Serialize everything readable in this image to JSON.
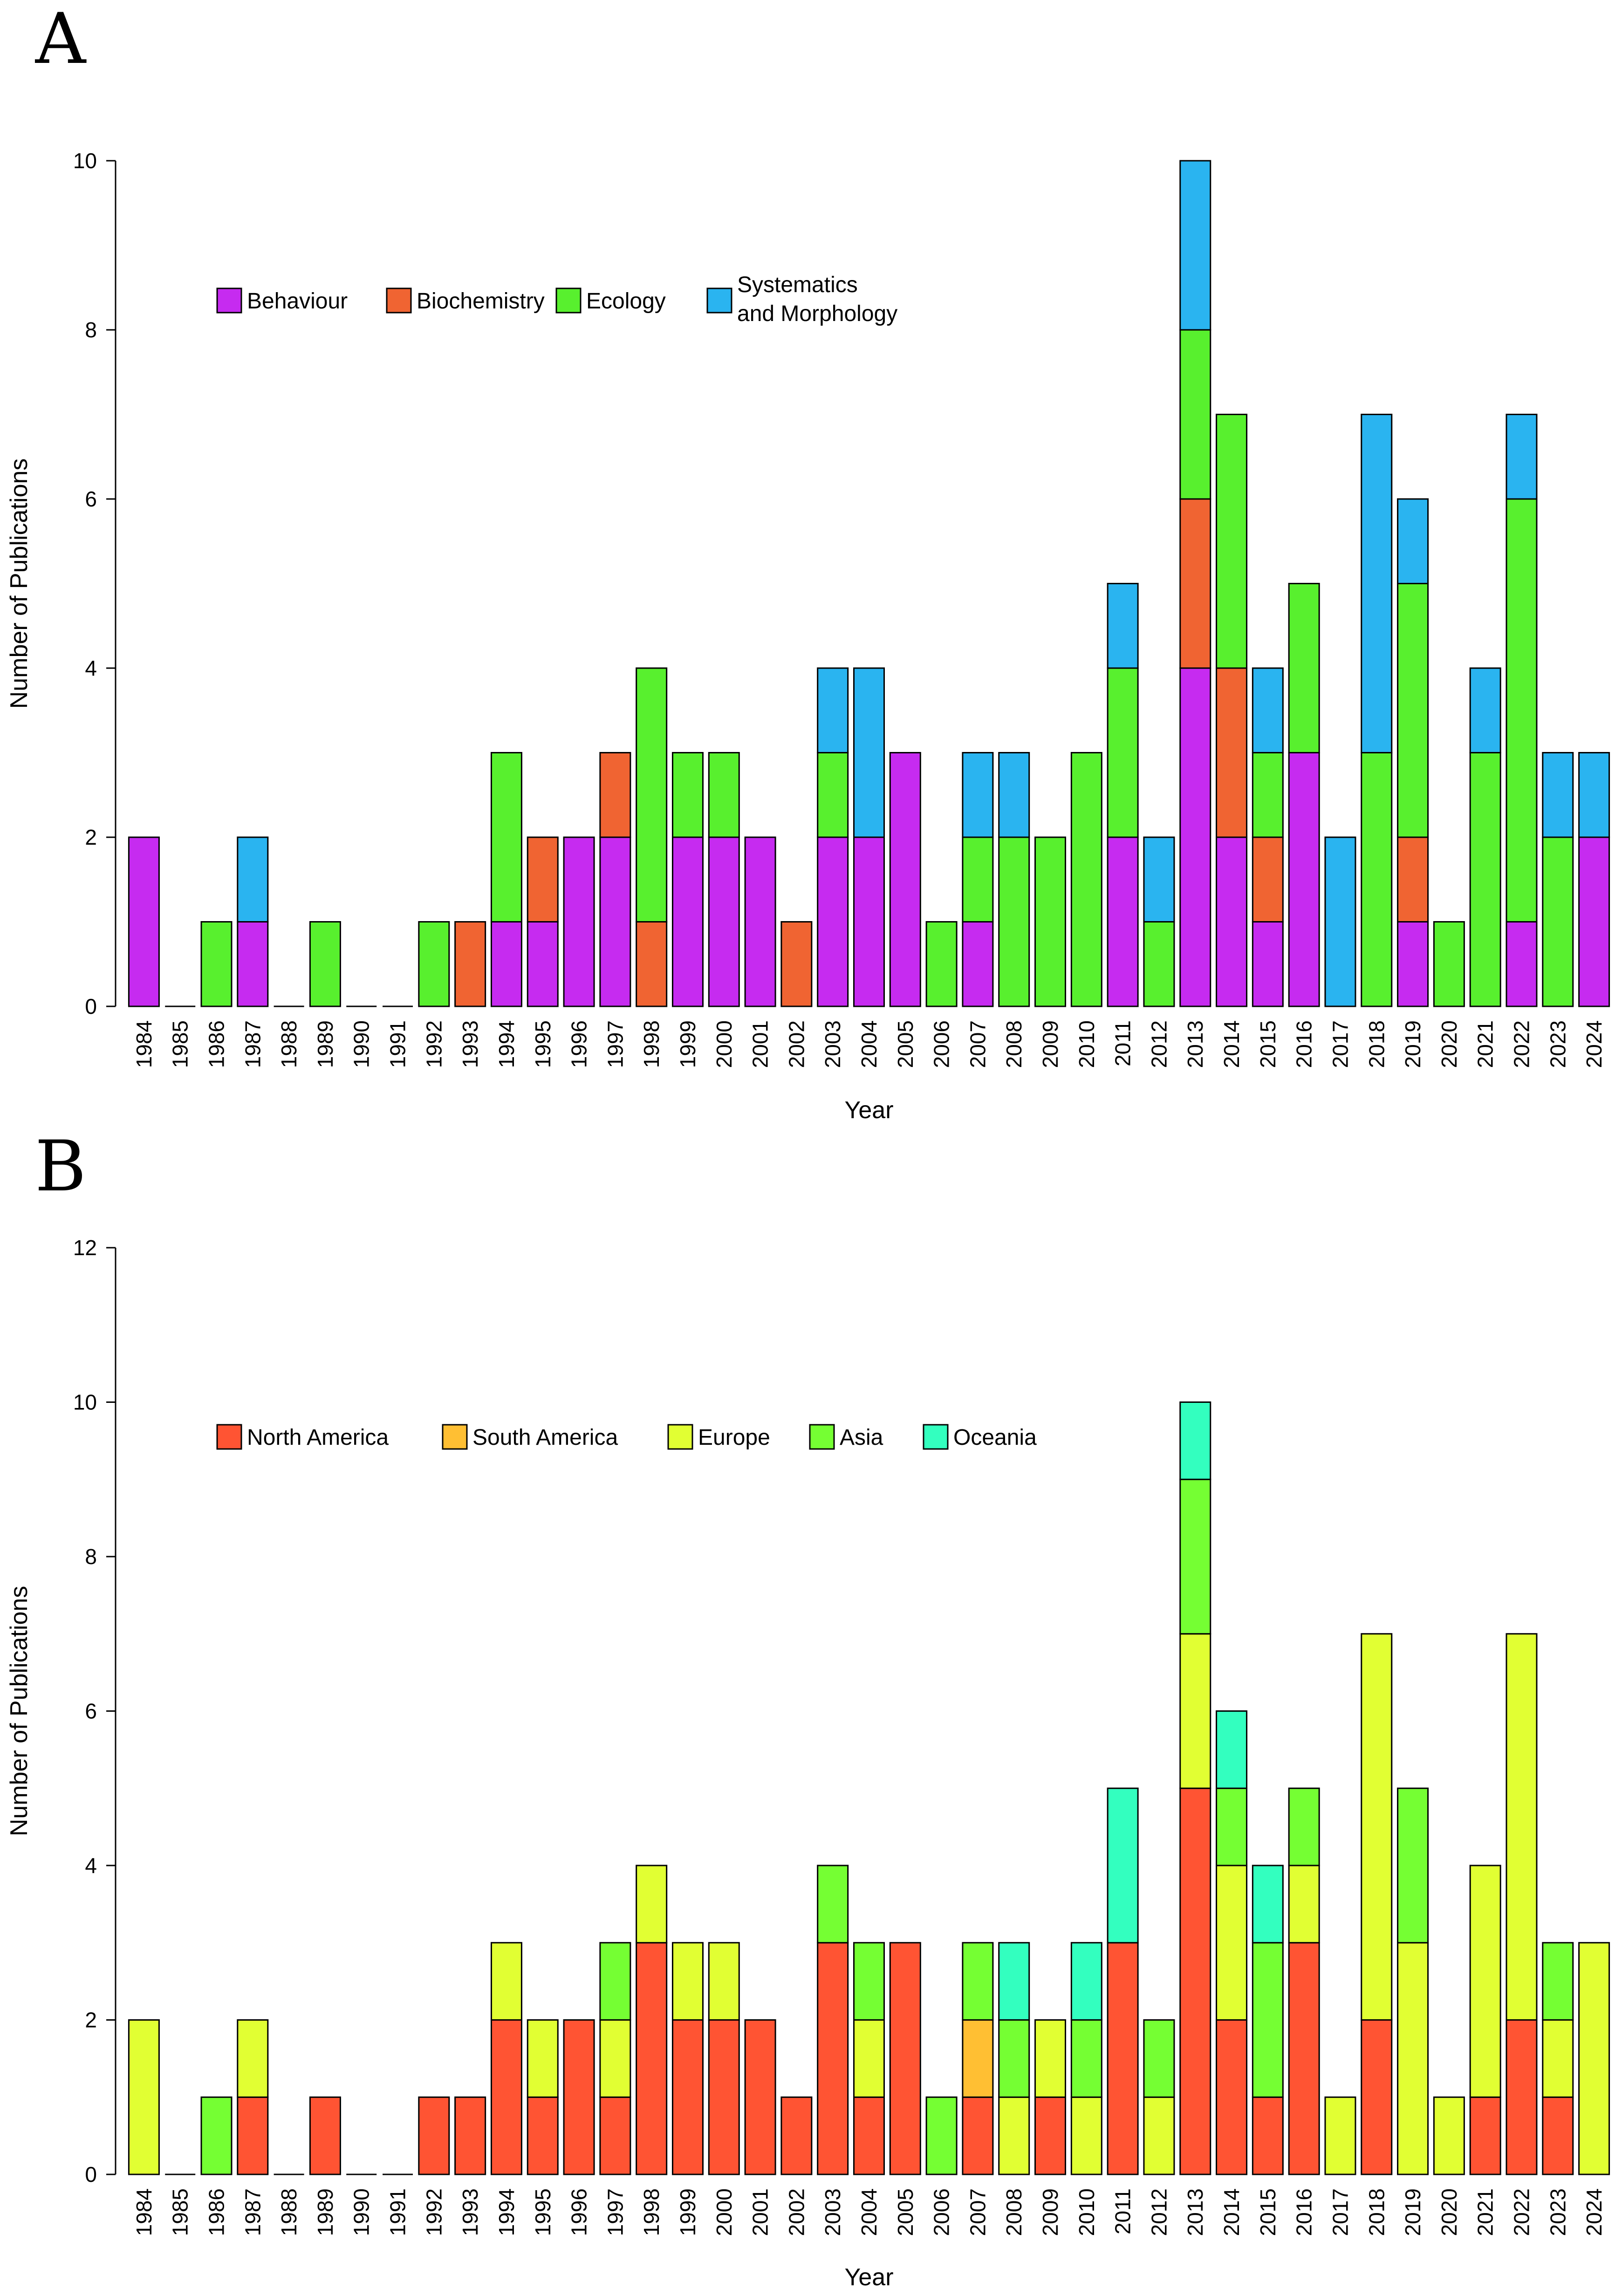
{
  "chart_data": [
    {
      "type": "bar",
      "stacked": true,
      "panel_label": "A",
      "title": "",
      "xlabel": "Year",
      "ylabel": "Number of Publications",
      "ylim": [
        0,
        10
      ],
      "yticks": [
        0,
        2,
        4,
        6,
        8,
        10
      ],
      "legend": "top-left",
      "categories": [
        "1984",
        "1985",
        "1986",
        "1987",
        "1988",
        "1989",
        "1990",
        "1991",
        "1992",
        "1993",
        "1994",
        "1995",
        "1996",
        "1997",
        "1998",
        "1999",
        "2000",
        "2001",
        "2002",
        "2003",
        "2004",
        "2005",
        "2006",
        "2007",
        "2008",
        "2009",
        "2010",
        "2011",
        "2012",
        "2013",
        "2014",
        "2015",
        "2016",
        "2017",
        "2018",
        "2019",
        "2020",
        "2021",
        "2022",
        "2023",
        "2024"
      ],
      "series": [
        {
          "name": "Behaviour",
          "color": "#c62bf0",
          "values": [
            2,
            0,
            0,
            1,
            0,
            0,
            0,
            0,
            0,
            0,
            1,
            1,
            2,
            2,
            0,
            2,
            2,
            2,
            0,
            2,
            2,
            3,
            0,
            1,
            0,
            0,
            0,
            2,
            0,
            4,
            2,
            1,
            3,
            0,
            0,
            1,
            0,
            0,
            1,
            0,
            2
          ]
        },
        {
          "name": "Biochemistry",
          "color": "#f06432",
          "values": [
            0,
            0,
            0,
            0,
            0,
            0,
            0,
            0,
            0,
            1,
            0,
            1,
            0,
            1,
            1,
            0,
            0,
            0,
            1,
            0,
            0,
            0,
            0,
            0,
            0,
            0,
            0,
            0,
            0,
            2,
            2,
            1,
            0,
            0,
            0,
            1,
            0,
            0,
            0,
            0,
            0
          ]
        },
        {
          "name": "Ecology",
          "color": "#58f02e",
          "values": [
            0,
            0,
            1,
            0,
            0,
            1,
            0,
            0,
            1,
            0,
            2,
            0,
            0,
            0,
            3,
            1,
            1,
            0,
            0,
            1,
            0,
            0,
            1,
            1,
            2,
            2,
            3,
            2,
            1,
            2,
            3,
            1,
            2,
            0,
            3,
            3,
            1,
            3,
            5,
            2,
            0
          ]
        },
        {
          "name": "Systematics\nand Morphology",
          "color": "#2ab4f0",
          "values": [
            0,
            0,
            0,
            1,
            0,
            0,
            0,
            0,
            0,
            0,
            0,
            0,
            0,
            0,
            0,
            0,
            0,
            0,
            0,
            1,
            2,
            0,
            0,
            1,
            1,
            0,
            0,
            1,
            1,
            2,
            0,
            1,
            0,
            2,
            4,
            1,
            0,
            1,
            1,
            1,
            1
          ]
        }
      ]
    },
    {
      "type": "bar",
      "stacked": true,
      "panel_label": "B",
      "title": "",
      "xlabel": "Year",
      "ylabel": "Number of Publications",
      "ylim": [
        0,
        12
      ],
      "yticks": [
        0,
        2,
        4,
        6,
        8,
        10,
        12
      ],
      "legend": "top-left",
      "categories": [
        "1984",
        "1985",
        "1986",
        "1987",
        "1988",
        "1989",
        "1990",
        "1991",
        "1992",
        "1993",
        "1994",
        "1995",
        "1996",
        "1997",
        "1998",
        "1999",
        "2000",
        "2001",
        "2002",
        "2003",
        "2004",
        "2005",
        "2006",
        "2007",
        "2008",
        "2009",
        "2010",
        "2011",
        "2012",
        "2013",
        "2014",
        "2015",
        "2016",
        "2017",
        "2018",
        "2019",
        "2020",
        "2021",
        "2022",
        "2023",
        "2024"
      ],
      "series": [
        {
          "name": "North America",
          "color": "#ff5433",
          "values": [
            0,
            0,
            0,
            1,
            0,
            1,
            0,
            0,
            1,
            1,
            2,
            1,
            2,
            1,
            3,
            2,
            2,
            2,
            1,
            3,
            1,
            3,
            0,
            1,
            0,
            1,
            0,
            3,
            0,
            5,
            2,
            1,
            3,
            0,
            2,
            0,
            0,
            1,
            2,
            1,
            0
          ]
        },
        {
          "name": "South America",
          "color": "#ffbf33",
          "values": [
            0,
            0,
            0,
            0,
            0,
            0,
            0,
            0,
            0,
            0,
            0,
            0,
            0,
            0,
            0,
            0,
            0,
            0,
            0,
            0,
            0,
            0,
            0,
            1,
            0,
            0,
            0,
            0,
            0,
            0,
            0,
            0,
            0,
            0,
            0,
            0,
            0,
            0,
            0,
            0,
            0
          ]
        },
        {
          "name": "Europe",
          "color": "#e1ff33",
          "values": [
            2,
            0,
            0,
            1,
            0,
            0,
            0,
            0,
            0,
            0,
            1,
            1,
            0,
            1,
            1,
            1,
            1,
            0,
            0,
            0,
            1,
            0,
            0,
            0,
            1,
            1,
            1,
            0,
            1,
            2,
            2,
            0,
            1,
            1,
            5,
            3,
            1,
            3,
            5,
            1,
            3
          ]
        },
        {
          "name": "Asia",
          "color": "#75ff33",
          "values": [
            0,
            0,
            1,
            0,
            0,
            0,
            0,
            0,
            0,
            0,
            0,
            0,
            0,
            1,
            0,
            0,
            0,
            0,
            0,
            1,
            1,
            0,
            1,
            1,
            1,
            0,
            1,
            0,
            1,
            2,
            1,
            2,
            1,
            0,
            0,
            2,
            0,
            0,
            0,
            1,
            0
          ]
        },
        {
          "name": "Oceania",
          "color": "#33ffbf",
          "values": [
            0,
            0,
            0,
            0,
            0,
            0,
            0,
            0,
            0,
            0,
            0,
            0,
            0,
            0,
            0,
            0,
            0,
            0,
            0,
            0,
            0,
            0,
            0,
            0,
            1,
            0,
            1,
            2,
            0,
            1,
            1,
            1,
            0,
            0,
            0,
            0,
            0,
            0,
            0,
            0,
            0
          ]
        }
      ]
    }
  ]
}
